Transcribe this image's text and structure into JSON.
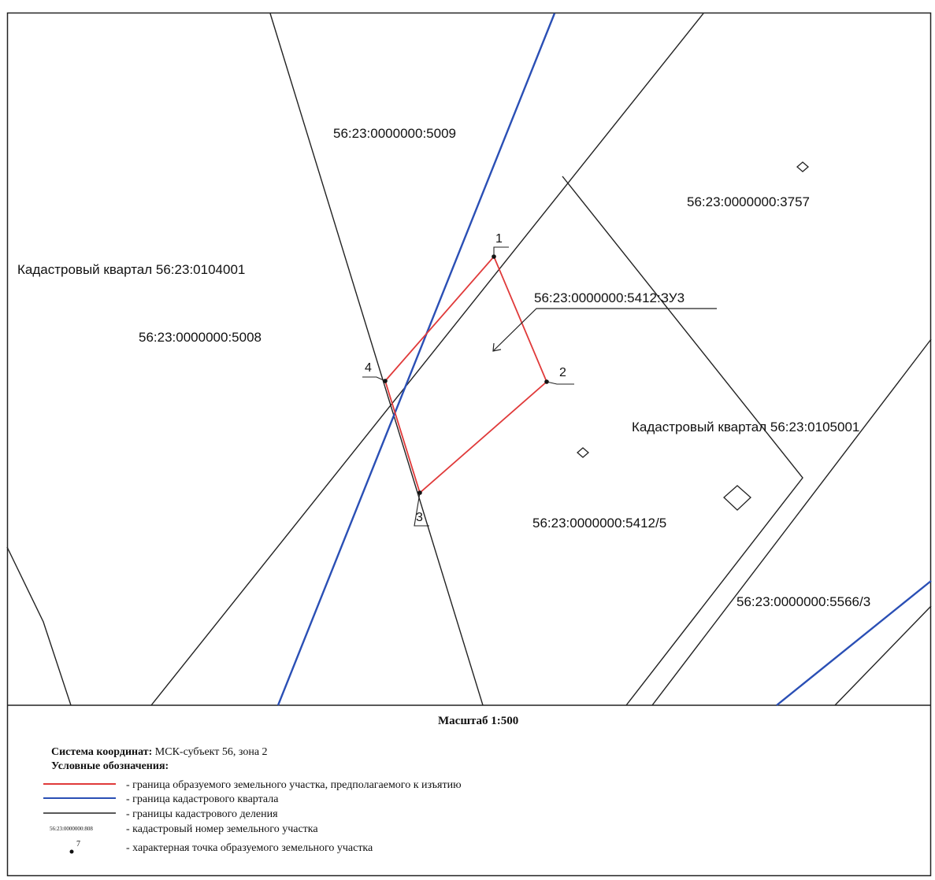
{
  "labels": {
    "parcel_5009": "56:23:0000000:5009",
    "parcel_3757": "56:23:0000000:3757",
    "quarter_west": "Кадастровый квартал 56:23:0104001",
    "parcel_5412_zu3": "56:23:0000000:5412:ЗУ3",
    "parcel_5008": "56:23:0000000:5008",
    "quarter_east": "Кадастровый квартал 56:23:0105001",
    "parcel_5412_5": "56:23:0000000:5412/5",
    "parcel_5566_3": "56:23:0000000:5566/3"
  },
  "points": {
    "p1": "1",
    "p2": "2",
    "p3": "3",
    "p4": "4"
  },
  "scale": "Масштаб 1:500",
  "coordinate_system": {
    "label": "Система координат:",
    "value": " МСК-субъект 56, зона 2"
  },
  "legend": {
    "title": "Условные обозначения:",
    "items": [
      {
        "symbol": "red-line",
        "text": "- граница образуемого земельного участка, предполагаемого к изъятию"
      },
      {
        "symbol": "blue-line",
        "text": "- граница кадастрового квартала"
      },
      {
        "symbol": "black-line",
        "text": "- границы кадастрового деления"
      },
      {
        "symbol": "sample-number",
        "sample": "56:23:0000000:808",
        "text": "- кадастровый номер земельного участка"
      },
      {
        "symbol": "dot",
        "sample": "7",
        "text": "- характерная точка образуемого земельного участка"
      }
    ]
  },
  "colors": {
    "parcel_boundary": "#e03a3a",
    "quarter_boundary": "#2a4fb5",
    "cadastral_division": "#222222"
  }
}
